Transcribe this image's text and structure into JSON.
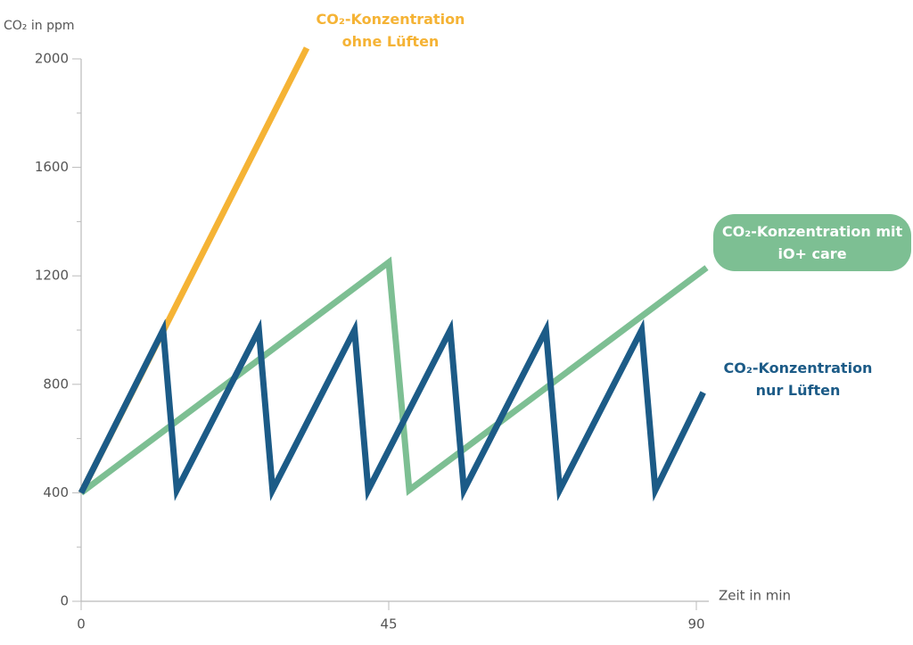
{
  "chart_data": {
    "type": "line",
    "y_label": "CO₂ in ppm",
    "x_label": "Zeit in min",
    "xlim": [
      0,
      90
    ],
    "xticks": [
      0,
      45,
      90
    ],
    "ylim": [
      0,
      2000
    ],
    "yticks": [
      0,
      400,
      800,
      1200,
      1600,
      2000
    ],
    "yminorticks": [
      200,
      600,
      1000,
      1400,
      1800
    ],
    "series": [
      {
        "name": "CO₂-Konzentration ohne Lüften",
        "color": "#f5b335",
        "x": [
          0,
          33
        ],
        "values": [
          400,
          2040
        ]
      },
      {
        "name": "CO₂-Konzentration mit iO+ care",
        "color": "#7dbf93",
        "x": [
          0,
          45,
          48,
          91.5
        ],
        "values": [
          400,
          1250,
          410,
          1230
        ]
      },
      {
        "name": "CO₂-Konzentration nur Lüften",
        "color": "#1c5b87",
        "x": [
          0,
          12,
          14,
          26,
          28,
          40,
          42,
          54,
          56,
          68,
          70,
          82,
          84,
          91
        ],
        "values": [
          400,
          1000,
          410,
          1000,
          410,
          1000,
          410,
          1000,
          410,
          1000,
          410,
          1000,
          410,
          770
        ]
      }
    ]
  }
}
